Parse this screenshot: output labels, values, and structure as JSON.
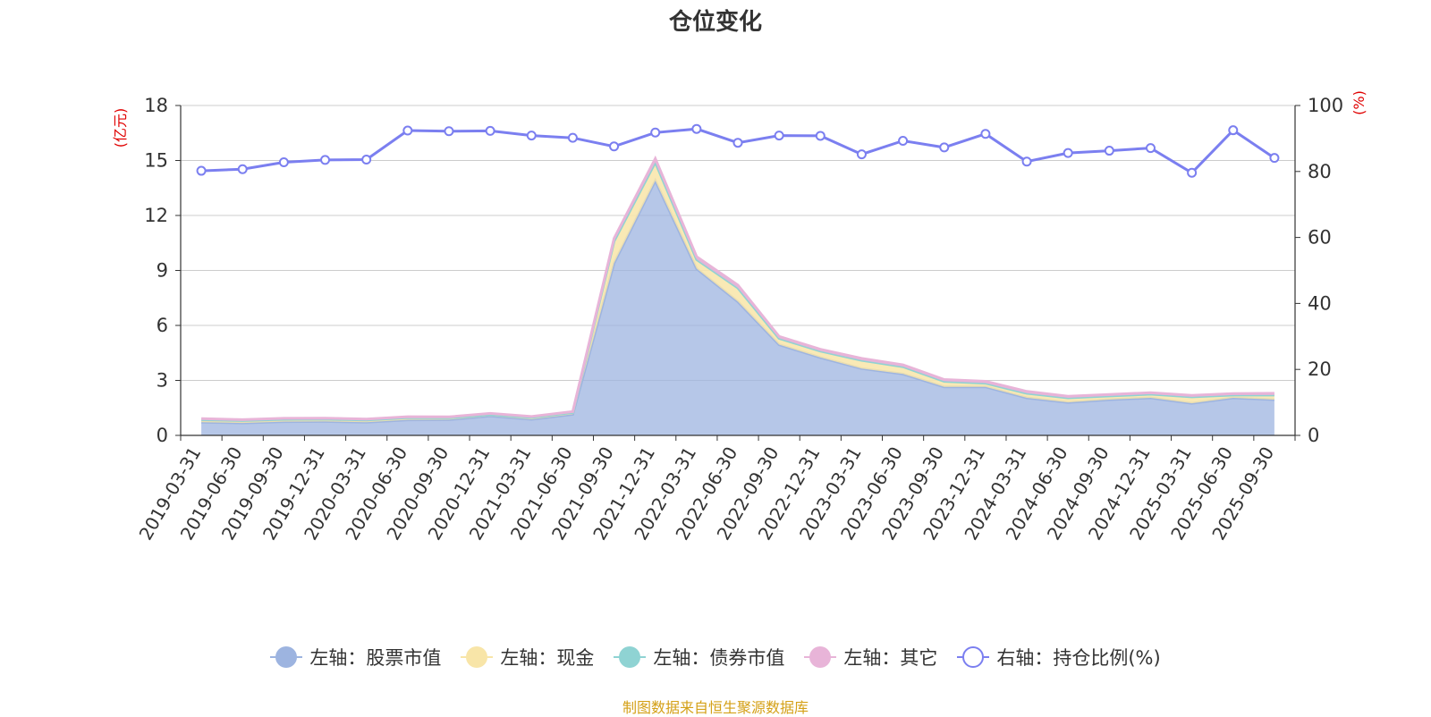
{
  "chart_data": {
    "type": "area",
    "title": "仓位变化",
    "source": "制图数据来自恒生聚源数据库",
    "y_left_label": "(亿元)",
    "y_right_label": "(%)",
    "y_left_range": [
      0,
      18
    ],
    "y_left_ticks": [
      "0",
      "3",
      "6",
      "9",
      "12",
      "15",
      "18"
    ],
    "y_right_range": [
      0,
      100
    ],
    "y_right_ticks": [
      "0",
      "20",
      "40",
      "60",
      "80",
      "100"
    ],
    "categories": [
      "2019-03-31",
      "2019-06-30",
      "2019-09-30",
      "2019-12-31",
      "2020-03-31",
      "2020-06-30",
      "2020-09-30",
      "2020-12-31",
      "2021-03-31",
      "2021-06-30",
      "2021-09-30",
      "2021-12-31",
      "2022-03-31",
      "2022-06-30",
      "2022-09-30",
      "2022-12-31",
      "2023-03-31",
      "2023-06-30",
      "2023-09-30",
      "2023-12-31",
      "2024-03-31",
      "2024-06-30",
      "2024-09-30",
      "2024-12-31",
      "2025-03-31",
      "2025-06-30",
      "2025-09-30"
    ],
    "series": [
      {
        "name": "左轴：股票市值",
        "axis": "left",
        "color": "#9db4e0",
        "values": [
          0.72,
          0.68,
          0.75,
          0.76,
          0.72,
          0.85,
          0.86,
          1.06,
          0.88,
          1.15,
          9.4,
          13.9,
          9.1,
          7.3,
          4.95,
          4.25,
          3.65,
          3.35,
          2.65,
          2.65,
          2.05,
          1.8,
          1.95,
          2.05,
          1.75,
          2.05,
          1.95
        ]
      },
      {
        "name": "左轴：现金",
        "axis": "left",
        "color": "#f8e5a8",
        "values": [
          0.14,
          0.13,
          0.13,
          0.13,
          0.12,
          0.12,
          0.1,
          0.08,
          0.1,
          0.1,
          1.2,
          1.0,
          0.5,
          0.75,
          0.35,
          0.35,
          0.45,
          0.4,
          0.3,
          0.2,
          0.25,
          0.25,
          0.2,
          0.2,
          0.35,
          0.15,
          0.25
        ]
      },
      {
        "name": "左轴：债券市值",
        "axis": "left",
        "color": "#8fd3d3",
        "values": [
          0,
          0,
          0,
          0,
          0,
          0,
          0,
          0,
          0,
          0,
          0,
          0,
          0,
          0,
          0,
          0,
          0,
          0,
          0,
          0,
          0,
          0,
          0,
          0,
          0,
          0,
          0
        ]
      },
      {
        "name": "左轴：其它",
        "axis": "left",
        "color": "#e8b4d8",
        "values": [
          0.05,
          0.05,
          0.05,
          0.05,
          0.05,
          0.05,
          0.05,
          0.06,
          0.05,
          0.05,
          0.15,
          0.2,
          0.15,
          0.15,
          0.1,
          0.1,
          0.1,
          0.1,
          0.1,
          0.1,
          0.1,
          0.08,
          0.08,
          0.08,
          0.08,
          0.08,
          0.1
        ]
      },
      {
        "name": "右轴：持仓比例(%)",
        "axis": "right",
        "color": "#7b7ff0",
        "values": [
          80.2,
          80.7,
          82.8,
          83.5,
          83.6,
          92.4,
          92.2,
          92.3,
          90.9,
          90.2,
          87.6,
          91.8,
          92.9,
          88.7,
          90.9,
          90.8,
          85.2,
          89.3,
          87.3,
          91.4,
          83.0,
          85.6,
          86.3,
          87.1,
          79.6,
          92.5,
          84.1
        ]
      }
    ]
  }
}
